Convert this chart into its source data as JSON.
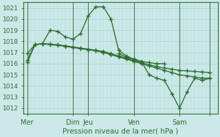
{
  "title": "Pression niveau de la mer( hPa )",
  "bg_color": "#cce8e8",
  "grid_color": "#99cccc",
  "line_color": "#2d6e2d",
  "ylim": [
    1011.5,
    1021.5
  ],
  "yticks": [
    1012,
    1013,
    1014,
    1015,
    1016,
    1017,
    1018,
    1019,
    1020,
    1021
  ],
  "day_positions": [
    0,
    6,
    8,
    14,
    20,
    24
  ],
  "day_labels": [
    "Mer",
    "Dim",
    "Jeu",
    "Ven",
    "Sam",
    ""
  ],
  "xlim": [
    -0.5,
    25
  ],
  "series1_x": [
    0,
    1,
    2,
    3,
    4,
    5,
    6,
    7,
    8,
    9,
    10,
    11,
    12,
    13,
    14,
    15,
    16,
    17,
    18
  ],
  "series1_y": [
    1016.9,
    1017.7,
    1017.8,
    1019.0,
    1018.9,
    1018.4,
    1018.2,
    1018.7,
    1020.3,
    1021.1,
    1021.1,
    1020.0,
    1017.2,
    1016.7,
    1016.4,
    1016.2,
    1016.1,
    1016.0,
    1016.0
  ],
  "series2_x": [
    0,
    1,
    2,
    3,
    4,
    5,
    6,
    7,
    8,
    9,
    10,
    11,
    12,
    13,
    14,
    15,
    16,
    17,
    18,
    19,
    20,
    21,
    22,
    23,
    24
  ],
  "series2_y": [
    1016.1,
    1017.7,
    1017.8,
    1017.7,
    1017.65,
    1017.55,
    1017.45,
    1017.35,
    1017.25,
    1017.15,
    1017.0,
    1016.8,
    1016.6,
    1016.4,
    1016.2,
    1016.0,
    1015.8,
    1015.6,
    1015.4,
    1015.2,
    1015.0,
    1014.9,
    1014.8,
    1014.7,
    1014.7
  ],
  "series3_x": [
    0,
    1,
    2,
    3,
    4,
    5,
    6,
    7,
    8,
    9,
    10,
    11,
    12,
    13,
    14,
    15,
    16,
    17,
    18,
    19,
    20,
    21,
    22,
    23,
    24
  ],
  "series3_y": [
    1016.3,
    1017.7,
    1017.8,
    1017.75,
    1017.7,
    1017.6,
    1017.5,
    1017.4,
    1017.3,
    1017.2,
    1017.1,
    1016.9,
    1016.7,
    1016.5,
    1016.3,
    1016.1,
    1015.9,
    1015.75,
    1015.6,
    1015.5,
    1015.4,
    1015.35,
    1015.3,
    1015.25,
    1015.2
  ],
  "series4_x": [
    12,
    13,
    14,
    15,
    16,
    17,
    18,
    19,
    20,
    21,
    22,
    23,
    24
  ],
  "series4_y": [
    1016.9,
    1016.6,
    1016.4,
    1016.2,
    1015.0,
    1014.7,
    1014.5,
    1013.3,
    1012.0,
    1013.5,
    1014.7,
    1014.5,
    1014.7
  ]
}
